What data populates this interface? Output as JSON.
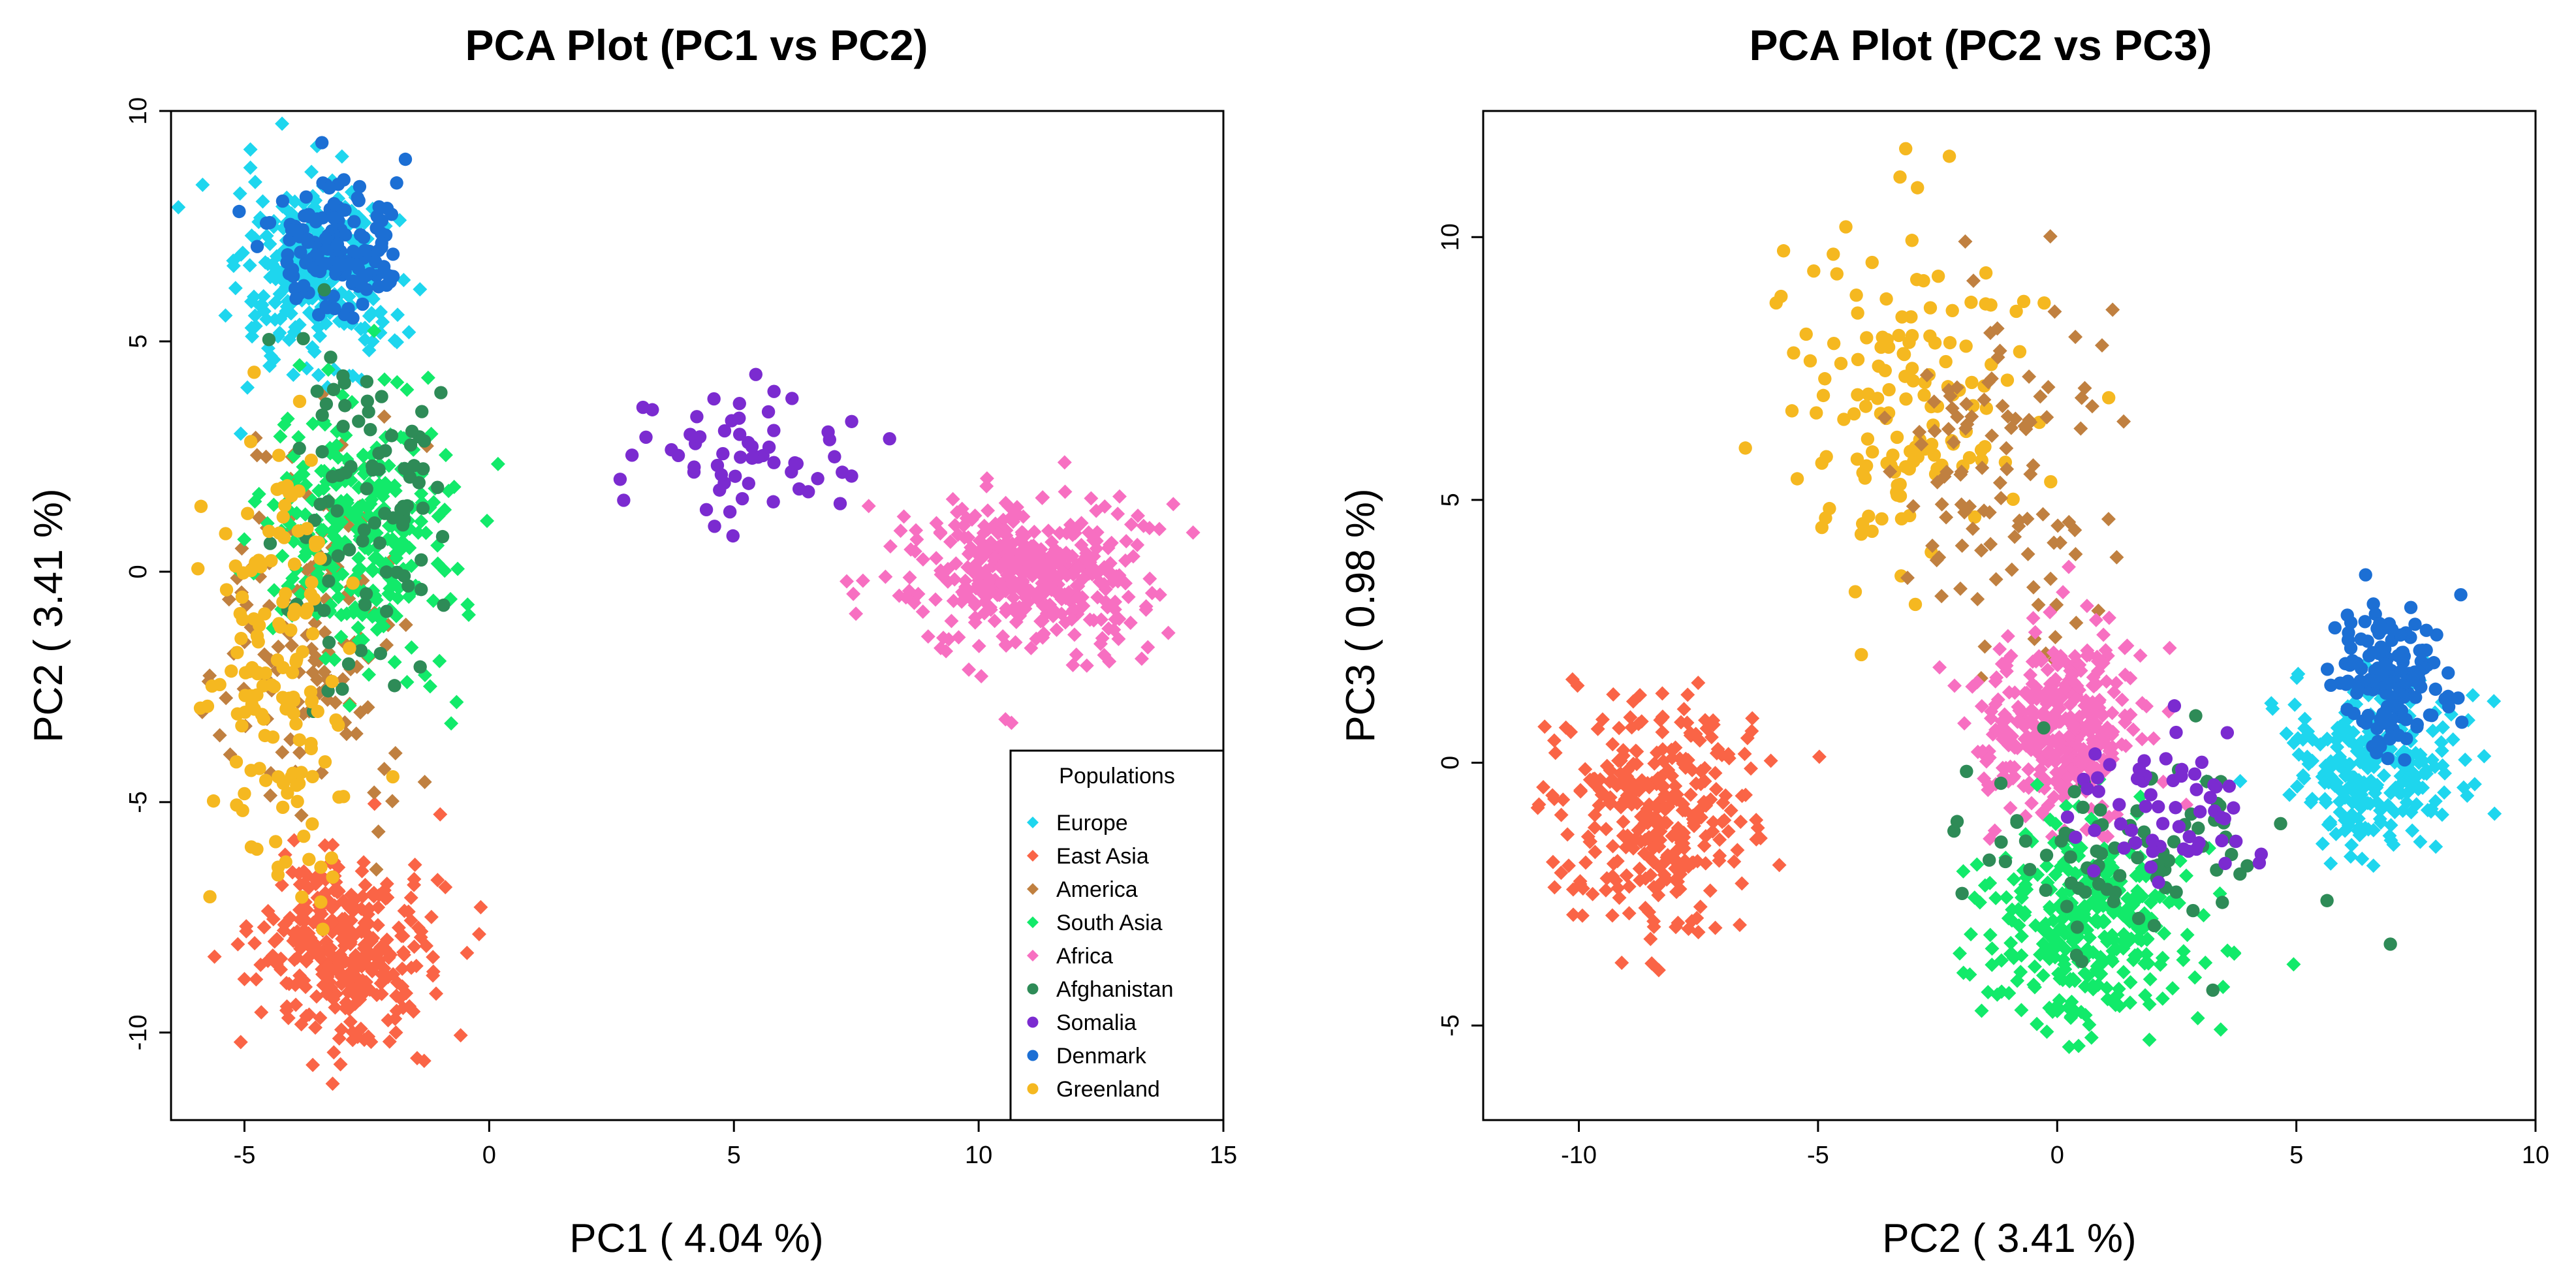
{
  "legend": {
    "title": "Populations",
    "entries": [
      {
        "name": "Europe",
        "color": "#1ED6EE",
        "shape": "diamond"
      },
      {
        "name": "East Asia",
        "color": "#FA6446",
        "shape": "diamond"
      },
      {
        "name": "America",
        "color": "#C08040",
        "shape": "diamond"
      },
      {
        "name": "South Asia",
        "color": "#12EA6A",
        "shape": "diamond"
      },
      {
        "name": "Africa",
        "color": "#F76FC1",
        "shape": "diamond"
      },
      {
        "name": "Afghanistan",
        "color": "#2E8B57",
        "shape": "circle"
      },
      {
        "name": "Somalia",
        "color": "#7B2BD0",
        "shape": "circle"
      },
      {
        "name": "Denmark",
        "color": "#1C6FD4",
        "shape": "circle"
      },
      {
        "name": "Greenland",
        "color": "#F5B820",
        "shape": "circle"
      }
    ]
  },
  "chart_data": [
    {
      "type": "scatter",
      "title": "PCA Plot (PC1 vs PC2)",
      "xlabel": "PC1 ( 4.04 %)",
      "ylabel": "PC2 ( 3.41 %)",
      "xlim": [
        -6.5,
        15
      ],
      "ylim": [
        -11.9,
        10
      ],
      "xticks": [
        -5,
        0,
        5,
        10,
        15
      ],
      "yticks": [
        -10,
        -5,
        0,
        5,
        10
      ],
      "grid": false,
      "legend_position": "bottom-right",
      "clusters": [
        {
          "series": "Europe",
          "center": [
            -3.5,
            6.3
          ],
          "spread": [
            0.8,
            1.1
          ],
          "count": 260
        },
        {
          "series": "Denmark",
          "center": [
            -3.2,
            7.0
          ],
          "spread": [
            0.6,
            0.7
          ],
          "count": 150
        },
        {
          "series": "East Asia",
          "center": [
            -3.0,
            -8.2
          ],
          "spread": [
            0.9,
            1.0
          ],
          "count": 320
        },
        {
          "series": "America",
          "center": [
            -3.5,
            -1.0
          ],
          "spread": [
            0.9,
            2.2
          ],
          "count": 150
        },
        {
          "series": "South Asia",
          "center": [
            -2.6,
            1.0
          ],
          "spread": [
            0.9,
            1.5
          ],
          "count": 300
        },
        {
          "series": "Afghanistan",
          "center": [
            -2.6,
            1.8
          ],
          "spread": [
            0.8,
            2.0
          ],
          "count": 90
        },
        {
          "series": "Greenland",
          "center": [
            -4.3,
            -2.0
          ],
          "spread": [
            0.7,
            2.7
          ],
          "count": 150
        },
        {
          "series": "Somalia",
          "center": [
            5.2,
            2.4
          ],
          "spread": [
            1.2,
            0.9
          ],
          "count": 60
        },
        {
          "series": "Africa",
          "center": [
            11.0,
            0.0
          ],
          "spread": [
            1.2,
            0.8
          ],
          "count": 420
        }
      ]
    },
    {
      "type": "scatter",
      "title": "PCA Plot (PC2 vs PC3)",
      "xlabel": "PC2 ( 3.41 %)",
      "ylabel": "PC3 ( 0.98 %)",
      "xlim": [
        -12,
        10
      ],
      "ylim": [
        -6.8,
        12.4
      ],
      "xticks": [
        -10,
        -5,
        0,
        5,
        10
      ],
      "yticks": [
        -5,
        0,
        5,
        10
      ],
      "grid": false,
      "clusters": [
        {
          "series": "East Asia",
          "center": [
            -8.3,
            -1.0
          ],
          "spread": [
            1.0,
            1.1
          ],
          "count": 320
        },
        {
          "series": "Greenland",
          "center": [
            -3.2,
            7.0
          ],
          "spread": [
            1.4,
            1.6
          ],
          "count": 150
        },
        {
          "series": "America",
          "center": [
            -1.0,
            5.5
          ],
          "spread": [
            1.2,
            1.7
          ],
          "count": 110
        },
        {
          "series": "Africa",
          "center": [
            0.0,
            0.7
          ],
          "spread": [
            0.8,
            0.8
          ],
          "count": 380
        },
        {
          "series": "South Asia",
          "center": [
            0.6,
            -3.2
          ],
          "spread": [
            1.1,
            1.0
          ],
          "count": 320
        },
        {
          "series": "Afghanistan",
          "center": [
            1.5,
            -1.8
          ],
          "spread": [
            1.6,
            0.9
          ],
          "count": 90
        },
        {
          "series": "Somalia",
          "center": [
            2.5,
            -0.9
          ],
          "spread": [
            1.0,
            0.8
          ],
          "count": 60
        },
        {
          "series": "Europe",
          "center": [
            6.6,
            0.0
          ],
          "spread": [
            0.9,
            0.8
          ],
          "count": 260
        },
        {
          "series": "Denmark",
          "center": [
            7.0,
            1.5
          ],
          "spread": [
            0.6,
            0.7
          ],
          "count": 150
        }
      ]
    }
  ]
}
